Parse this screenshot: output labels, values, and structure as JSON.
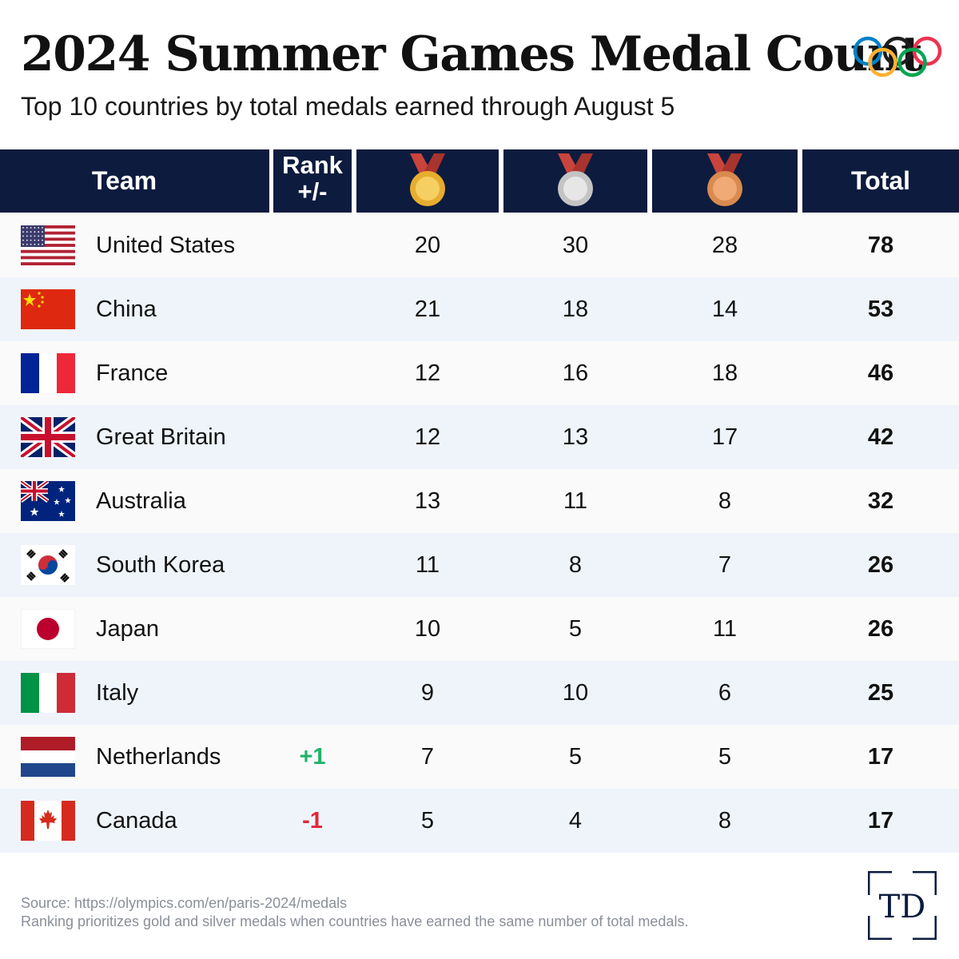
{
  "header": {
    "title": "2024 Summer Games Medal Count",
    "subtitle": "Top 10 countries by total medals earned through August 5"
  },
  "colors": {
    "header_bg": "#0d1b3e",
    "row_even": "#fafafa",
    "row_odd": "#eff4fb",
    "rank_up": "#20b26a",
    "rank_down": "#e0283a",
    "gold": "#f2c14e",
    "silver": "#d7d7d7",
    "bronze": "#e7a06a",
    "ribbon": "#c8443c"
  },
  "icons": {
    "logo": "olympic-rings-icon",
    "gold_header": "gold-medal-icon",
    "silver_header": "silver-medal-icon",
    "bronze_header": "bronze-medal-icon",
    "brand": "td-logo"
  },
  "chart_data": {
    "type": "table",
    "columns": [
      "Team",
      "Rank +/-",
      "Gold",
      "Silver",
      "Bronze",
      "Total"
    ],
    "column_headers": {
      "team": "Team",
      "rank_line1": "Rank",
      "rank_line2": "+/-",
      "total": "Total"
    },
    "rows": [
      {
        "team": "United States",
        "flag": "us-flag-icon",
        "rank_change": "",
        "gold": "20",
        "silver": "30",
        "bronze": "28",
        "total": "78"
      },
      {
        "team": "China",
        "flag": "china-flag-icon",
        "rank_change": "",
        "gold": "21",
        "silver": "18",
        "bronze": "14",
        "total": "53"
      },
      {
        "team": "France",
        "flag": "france-flag-icon",
        "rank_change": "",
        "gold": "12",
        "silver": "16",
        "bronze": "18",
        "total": "46"
      },
      {
        "team": "Great Britain",
        "flag": "uk-flag-icon",
        "rank_change": "",
        "gold": "12",
        "silver": "13",
        "bronze": "17",
        "total": "42"
      },
      {
        "team": "Australia",
        "flag": "australia-flag-icon",
        "rank_change": "",
        "gold": "13",
        "silver": "11",
        "bronze": "8",
        "total": "32"
      },
      {
        "team": "South Korea",
        "flag": "south-korea-flag-icon",
        "rank_change": "",
        "gold": "11",
        "silver": "8",
        "bronze": "7",
        "total": "26"
      },
      {
        "team": "Japan",
        "flag": "japan-flag-icon",
        "rank_change": "",
        "gold": "10",
        "silver": "5",
        "bronze": "11",
        "total": "26"
      },
      {
        "team": "Italy",
        "flag": "italy-flag-icon",
        "rank_change": "",
        "gold": "9",
        "silver": "10",
        "bronze": "6",
        "total": "25"
      },
      {
        "team": "Netherlands",
        "flag": "netherlands-flag-icon",
        "rank_change": "+1",
        "gold": "7",
        "silver": "5",
        "bronze": "5",
        "total": "17"
      },
      {
        "team": "Canada",
        "flag": "canada-flag-icon",
        "rank_change": "-1",
        "gold": "5",
        "silver": "4",
        "bronze": "8",
        "total": "17"
      }
    ]
  },
  "footer": {
    "source": "Source: https://olympics.com/en/paris-2024/medals",
    "note": "Ranking prioritizes gold and silver medals when countries have earned the same number of total medals.",
    "brand_text": "TD"
  }
}
